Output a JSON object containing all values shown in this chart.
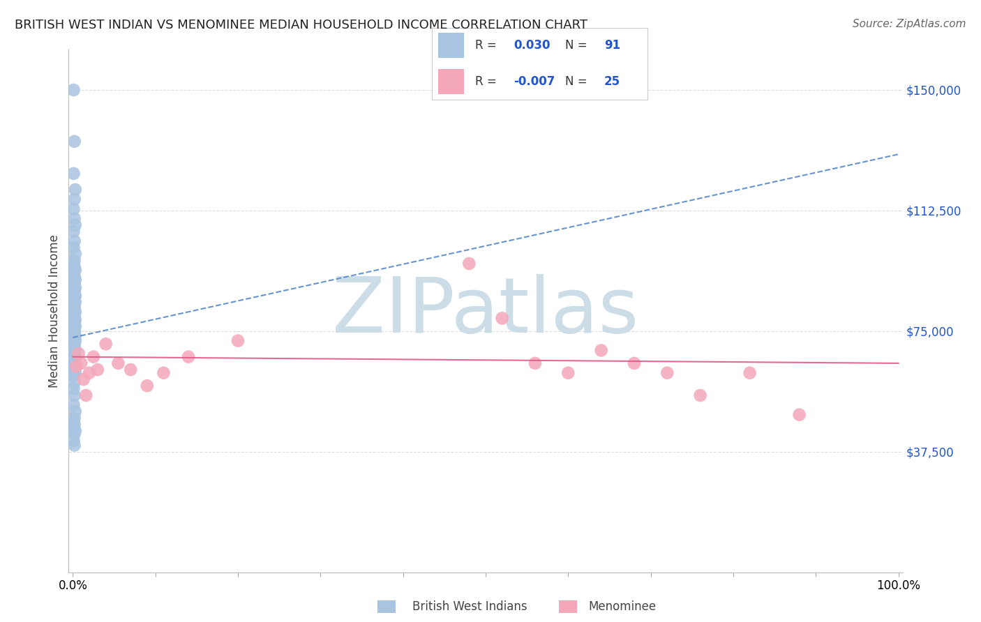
{
  "title": "BRITISH WEST INDIAN VS MENOMINEE MEDIAN HOUSEHOLD INCOME CORRELATION CHART",
  "source": "Source: ZipAtlas.com",
  "ylabel": "Median Household Income",
  "yticks": [
    37500,
    75000,
    112500,
    150000
  ],
  "ytick_labels": [
    "$37,500",
    "$75,000",
    "$112,500",
    "$150,000"
  ],
  "ylim": [
    0,
    162500
  ],
  "xlim": [
    -0.005,
    1.005
  ],
  "legend_labels": [
    "British West Indians",
    "Menominee"
  ],
  "legend_R": [
    "0.030",
    "-0.007"
  ],
  "legend_N": [
    "91",
    "25"
  ],
  "blue_color": "#a8c4e0",
  "pink_color": "#f4a7b9",
  "blue_line_color": "#5588cc",
  "pink_line_color": "#e05a8a",
  "blue_scatter_x": [
    0.001,
    0.002,
    0.001,
    0.003,
    0.002,
    0.001,
    0.002,
    0.003,
    0.001,
    0.002,
    0.001,
    0.003,
    0.002,
    0.001,
    0.002,
    0.003,
    0.001,
    0.002,
    0.001,
    0.003,
    0.002,
    0.001,
    0.002,
    0.001,
    0.003,
    0.002,
    0.001,
    0.002,
    0.001,
    0.003,
    0.002,
    0.001,
    0.002,
    0.003,
    0.001,
    0.002,
    0.001,
    0.002,
    0.001,
    0.003,
    0.002,
    0.001,
    0.002,
    0.001,
    0.003,
    0.002,
    0.001,
    0.002,
    0.003,
    0.001,
    0.002,
    0.001,
    0.002,
    0.001,
    0.003,
    0.002,
    0.001,
    0.003,
    0.002,
    0.001,
    0.002,
    0.001,
    0.002,
    0.003,
    0.001,
    0.002,
    0.001,
    0.002,
    0.003,
    0.001,
    0.002,
    0.001,
    0.003,
    0.002,
    0.001,
    0.002,
    0.003,
    0.001,
    0.002,
    0.001,
    0.002,
    0.001,
    0.003,
    0.002,
    0.001,
    0.002,
    0.001,
    0.003,
    0.002,
    0.001,
    0.002
  ],
  "blue_scatter_y": [
    150000,
    134000,
    124000,
    119000,
    116000,
    113000,
    110000,
    108000,
    106000,
    103000,
    101000,
    99000,
    97000,
    96000,
    95000,
    94000,
    93000,
    92000,
    91500,
    91000,
    90500,
    90000,
    89500,
    89000,
    88500,
    88000,
    87500,
    87000,
    86500,
    86000,
    85500,
    85000,
    84500,
    84000,
    83500,
    83000,
    82500,
    82000,
    81500,
    81000,
    80500,
    80000,
    79500,
    79000,
    78500,
    78000,
    77500,
    77000,
    76500,
    76000,
    75500,
    75000,
    74500,
    74000,
    73500,
    73000,
    72500,
    72000,
    71500,
    71000,
    70500,
    70000,
    69500,
    69000,
    68500,
    68000,
    67500,
    67000,
    66500,
    66000,
    65500,
    65000,
    64500,
    64000,
    63500,
    63000,
    62000,
    61000,
    59000,
    57000,
    55000,
    52000,
    50000,
    48000,
    47000,
    46000,
    45000,
    44000,
    43000,
    41000,
    39500
  ],
  "pink_scatter_x": [
    0.004,
    0.007,
    0.01,
    0.013,
    0.016,
    0.02,
    0.025,
    0.03,
    0.04,
    0.055,
    0.07,
    0.09,
    0.11,
    0.14,
    0.2,
    0.48,
    0.52,
    0.56,
    0.6,
    0.64,
    0.68,
    0.72,
    0.76,
    0.82,
    0.88
  ],
  "pink_scatter_y": [
    64000,
    68000,
    65000,
    60000,
    55000,
    62000,
    67000,
    63000,
    71000,
    65000,
    63000,
    58000,
    62000,
    67000,
    72000,
    96000,
    79000,
    65000,
    62000,
    69000,
    65000,
    62000,
    55000,
    62000,
    49000
  ],
  "blue_trend_x": [
    0.0,
    1.0
  ],
  "blue_trend_y": [
    73000,
    130000
  ],
  "pink_trend_x": [
    0.0,
    1.0
  ],
  "pink_trend_y": [
    67000,
    65000
  ],
  "watermark": "ZIPatlas",
  "watermark_color": "#ccdde8",
  "background_color": "#ffffff",
  "grid_color": "#dddddd"
}
